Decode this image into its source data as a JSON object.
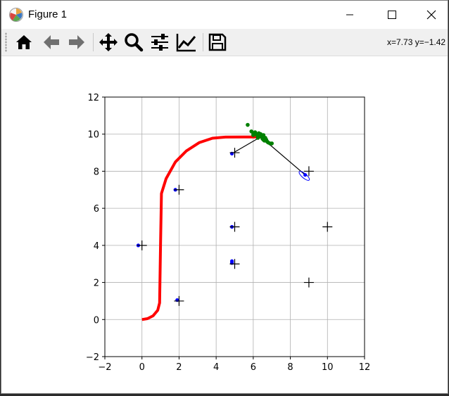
{
  "window": {
    "title": "Figure 1",
    "controls": [
      "minimize",
      "maximize",
      "close"
    ]
  },
  "toolbar": {
    "buttons": [
      {
        "name": "home",
        "icon": "home-icon",
        "tooltip": "Reset original view"
      },
      {
        "name": "back",
        "icon": "arrow-left-icon",
        "tooltip": "Back"
      },
      {
        "name": "forward",
        "icon": "arrow-right-icon",
        "tooltip": "Forward"
      },
      {
        "name": "pan",
        "icon": "move-icon",
        "tooltip": "Pan"
      },
      {
        "name": "zoom",
        "icon": "zoom-icon",
        "tooltip": "Zoom"
      },
      {
        "name": "subplots",
        "icon": "sliders-icon",
        "tooltip": "Configure subplots"
      },
      {
        "name": "customize",
        "icon": "line-chart-icon",
        "tooltip": "Edit axis"
      },
      {
        "name": "save",
        "icon": "save-icon",
        "tooltip": "Save"
      }
    ],
    "coords": "x=7.73 y=−1.42"
  },
  "chart_data": {
    "type": "scatter",
    "title": "",
    "xlabel": "",
    "ylabel": "",
    "xlim": [
      -2,
      12
    ],
    "ylim": [
      -2,
      12
    ],
    "xticks": [
      -2,
      0,
      2,
      4,
      6,
      8,
      10,
      12
    ],
    "yticks": [
      -2,
      0,
      2,
      4,
      6,
      8,
      10,
      12
    ],
    "xtick_labels": [
      "−2",
      "0",
      "2",
      "4",
      "6",
      "8",
      "10",
      "12"
    ],
    "ytick_labels": [
      "−2",
      "0",
      "2",
      "4",
      "6",
      "8",
      "10",
      "12"
    ],
    "grid": true,
    "colors": {
      "path": "#ff0000",
      "landmarks": "#000000",
      "estimates": "#0000ff",
      "particles": "#008000",
      "lines": "#000000"
    },
    "landmarks": [
      [
        0,
        4
      ],
      [
        2,
        1
      ],
      [
        2,
        7
      ],
      [
        5,
        3
      ],
      [
        5,
        5
      ],
      [
        5,
        9
      ],
      [
        9,
        2
      ],
      [
        9,
        8
      ],
      [
        10,
        5
      ]
    ],
    "landmark_estimates": [
      [
        -0.2,
        4.0
      ],
      [
        1.9,
        1.05
      ],
      [
        1.8,
        7.0
      ],
      [
        4.85,
        3.15
      ],
      [
        4.85,
        3.05
      ],
      [
        4.85,
        5.0
      ],
      [
        4.85,
        8.95
      ],
      [
        8.8,
        7.8
      ]
    ],
    "path": [
      [
        0,
        0
      ],
      [
        0.3,
        0.05
      ],
      [
        0.6,
        0.2
      ],
      [
        0.85,
        0.5
      ],
      [
        0.95,
        0.9
      ],
      [
        1.0,
        4.0
      ],
      [
        1.05,
        6.8
      ],
      [
        1.3,
        7.6
      ],
      [
        1.8,
        8.5
      ],
      [
        2.4,
        9.1
      ],
      [
        3.1,
        9.55
      ],
      [
        3.8,
        9.78
      ],
      [
        4.5,
        9.84
      ],
      [
        5.5,
        9.85
      ],
      [
        6.5,
        9.85
      ]
    ],
    "robot_position": [
      6.4,
      9.85
    ],
    "observation_lines": [
      [
        [
          6.4,
          9.85
        ],
        [
          4.85,
          8.95
        ]
      ],
      [
        [
          6.4,
          9.85
        ],
        [
          8.8,
          7.8
        ]
      ]
    ],
    "uncertainty_ellipse": {
      "center": [
        8.75,
        7.75
      ],
      "rx": 0.12,
      "ry": 0.35,
      "angle_deg": -50
    },
    "particles": [
      [
        5.7,
        10.5
      ],
      [
        5.9,
        10.15
      ],
      [
        6.0,
        10.05
      ],
      [
        6.1,
        10.1
      ],
      [
        6.15,
        10.0
      ],
      [
        6.2,
        9.95
      ],
      [
        6.3,
        10.05
      ],
      [
        6.35,
        9.9
      ],
      [
        6.4,
        10.0
      ],
      [
        6.45,
        9.85
      ],
      [
        6.5,
        9.75
      ],
      [
        6.55,
        9.95
      ],
      [
        6.6,
        9.65
      ],
      [
        6.65,
        9.8
      ],
      [
        6.7,
        9.7
      ],
      [
        6.75,
        9.6
      ],
      [
        6.8,
        9.55
      ],
      [
        6.9,
        9.5
      ],
      [
        7.0,
        9.5
      ],
      [
        6.25,
        9.8
      ],
      [
        6.0,
        9.95
      ],
      [
        6.55,
        9.7
      ]
    ]
  }
}
